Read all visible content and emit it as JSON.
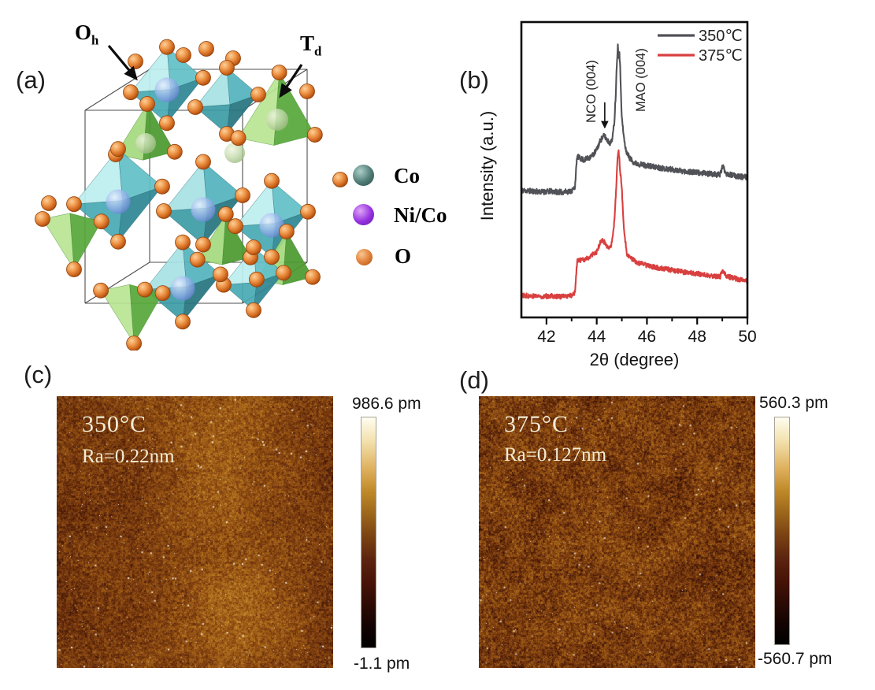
{
  "figure": {
    "panel_a": {
      "label": "(a)",
      "site_labels": {
        "oh_main": "O",
        "oh_sub": "h",
        "td_main": "T",
        "td_sub": "d"
      },
      "legend": [
        {
          "name": "Co",
          "color": "#3f6b66"
        },
        {
          "name": "Ni/Co",
          "color": "#8a2bd8"
        },
        {
          "name": "O",
          "color": "#d86f28"
        }
      ]
    },
    "panel_b": {
      "label": "(b)"
    },
    "panel_c": {
      "label": "(c)",
      "temperature": "350°C",
      "roughness": "Ra=0.22nm",
      "colorbar_max": "986.6 pm",
      "colorbar_min": "-1.1 pm"
    },
    "panel_d": {
      "label": "(d)",
      "temperature": "375°C",
      "roughness": "Ra=0.127nm",
      "colorbar_max": "560.3 pm",
      "colorbar_min": "-560.7 pm"
    }
  },
  "chart_data": {
    "type": "line",
    "title": "",
    "xlabel": "2θ (degree)",
    "ylabel": "Intensity (a.u.)",
    "xlim": [
      41,
      50
    ],
    "x_ticks": [
      42,
      44,
      46,
      48,
      50
    ],
    "x_minor_ticks": [
      43,
      45,
      47,
      49
    ],
    "grid": false,
    "legend_position": "top-right",
    "peaks": [
      {
        "label": "NCO (004)",
        "two_theta": 44.3
      },
      {
        "label": "MAO (004)",
        "two_theta": 44.9
      }
    ],
    "annotations": [
      {
        "text": "NCO (004)",
        "target_x": 44.32,
        "rotation": 90,
        "arrow": true
      },
      {
        "text": "MAO (004)",
        "target_x": 44.9,
        "rotation": 90,
        "arrow": false
      }
    ],
    "y_units": "arbitrary, curves vertically offset",
    "series": [
      {
        "name": "350℃",
        "color": "#515257",
        "noise": 0.009,
        "seed": 11,
        "profile": [
          [
            41,
            0.43
          ],
          [
            41.4,
            0.428
          ],
          [
            41.8,
            0.425
          ],
          [
            42.2,
            0.427
          ],
          [
            42.6,
            0.424
          ],
          [
            43.0,
            0.428
          ],
          [
            43.13,
            0.44
          ],
          [
            43.22,
            0.545
          ],
          [
            43.35,
            0.538
          ],
          [
            43.5,
            0.533
          ],
          [
            43.68,
            0.54
          ],
          [
            43.85,
            0.55
          ],
          [
            44.0,
            0.568
          ],
          [
            44.15,
            0.6
          ],
          [
            44.3,
            0.616
          ],
          [
            44.42,
            0.6
          ],
          [
            44.55,
            0.589
          ],
          [
            44.63,
            0.61
          ],
          [
            44.7,
            0.66
          ],
          [
            44.76,
            0.76
          ],
          [
            44.8,
            0.86
          ],
          [
            44.84,
            0.92
          ],
          [
            44.87,
            0.885
          ],
          [
            44.9,
            0.905
          ],
          [
            44.94,
            0.83
          ],
          [
            45.0,
            0.675
          ],
          [
            45.08,
            0.61
          ],
          [
            45.15,
            0.568
          ],
          [
            45.3,
            0.541
          ],
          [
            45.5,
            0.523
          ],
          [
            45.8,
            0.517
          ],
          [
            46.2,
            0.511
          ],
          [
            46.8,
            0.503
          ],
          [
            47.4,
            0.496
          ],
          [
            48.0,
            0.49
          ],
          [
            48.5,
            0.486
          ],
          [
            48.9,
            0.483
          ],
          [
            49.02,
            0.512
          ],
          [
            49.15,
            0.488
          ],
          [
            49.4,
            0.481
          ],
          [
            49.7,
            0.477
          ],
          [
            50,
            0.474
          ]
        ]
      },
      {
        "name": "375℃",
        "color": "#d8403f",
        "noise": 0.008,
        "seed": 77,
        "profile": [
          [
            41,
            0.075
          ],
          [
            41.4,
            0.073
          ],
          [
            41.8,
            0.071
          ],
          [
            42.2,
            0.073
          ],
          [
            42.6,
            0.07
          ],
          [
            43.0,
            0.074
          ],
          [
            43.13,
            0.085
          ],
          [
            43.22,
            0.19
          ],
          [
            43.35,
            0.193
          ],
          [
            43.5,
            0.196
          ],
          [
            43.68,
            0.203
          ],
          [
            43.85,
            0.213
          ],
          [
            44.0,
            0.221
          ],
          [
            44.15,
            0.255
          ],
          [
            44.25,
            0.261
          ],
          [
            44.38,
            0.245
          ],
          [
            44.5,
            0.229
          ],
          [
            44.6,
            0.25
          ],
          [
            44.68,
            0.3
          ],
          [
            44.74,
            0.38
          ],
          [
            44.79,
            0.47
          ],
          [
            44.83,
            0.545
          ],
          [
            44.86,
            0.568
          ],
          [
            44.89,
            0.55
          ],
          [
            44.93,
            0.5
          ],
          [
            45.0,
            0.435
          ],
          [
            45.08,
            0.3
          ],
          [
            45.2,
            0.216
          ],
          [
            45.4,
            0.197
          ],
          [
            45.7,
            0.183
          ],
          [
            46.2,
            0.172
          ],
          [
            46.8,
            0.163
          ],
          [
            47.5,
            0.153
          ],
          [
            48.0,
            0.148
          ],
          [
            48.5,
            0.142
          ],
          [
            48.9,
            0.137
          ],
          [
            49.02,
            0.157
          ],
          [
            49.15,
            0.14
          ],
          [
            49.4,
            0.134
          ],
          [
            49.7,
            0.128
          ],
          [
            50,
            0.123
          ]
        ]
      }
    ]
  }
}
